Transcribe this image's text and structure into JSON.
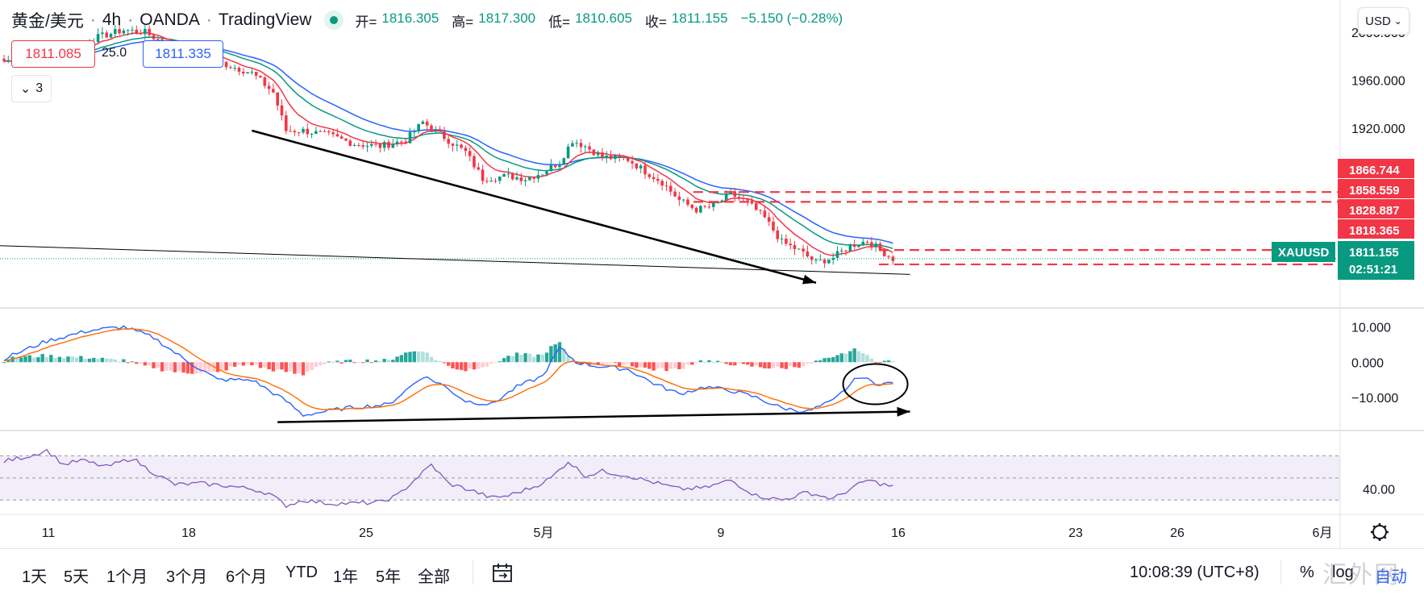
{
  "header": {
    "symbol": "黄金/美元",
    "interval": "4h",
    "broker": "OANDA",
    "platform": "TradingView",
    "ohlc": {
      "open_label": "开=",
      "open": "1816.305",
      "high_label": "高=",
      "high": "1817.300",
      "low_label": "低=",
      "low": "1810.605",
      "close_label": "收=",
      "close": "1811.155",
      "change": "−5.150 (−0.28%)"
    }
  },
  "quote": {
    "bid": "1811.085",
    "spread": "25.0",
    "ask": "1811.335"
  },
  "indicators_toggle": {
    "count": "3"
  },
  "currency_selector": "USD",
  "toolbar": {
    "ranges": [
      "1天",
      "5天",
      "1个月",
      "3个月",
      "6个月",
      "YTD",
      "1年",
      "5年",
      "全部"
    ],
    "clock": "10:08:39 (UTC+8)",
    "percent_label": "%",
    "log_label": "log",
    "auto_label": "自动"
  },
  "watermark": "汇外网",
  "colors": {
    "up": "#089981",
    "down": "#f23645",
    "ma_fast": "#f23645",
    "ma_mid": "#089981",
    "ma_slow": "#2962ff",
    "macd": "#2962ff",
    "signal": "#ff6d00",
    "rsi": "#7e57c2",
    "accent": "#2962ff"
  },
  "chart_data": {
    "type": "candlestick",
    "price_axis": {
      "ticks": [
        2000,
        1960,
        1920
      ],
      "tick_labels": [
        "2000.000",
        "1960.000",
        "1920.000"
      ],
      "range": [
        1770,
        2027
      ]
    },
    "x_axis": {
      "labels": [
        "11",
        "18",
        "25",
        "5月",
        "9",
        "16",
        "23",
        "26",
        "6月"
      ]
    },
    "last_price": "1811.155",
    "countdown": "02:51:21",
    "symbol_tag": "XAUUSD",
    "levels": [
      {
        "label": "1866.744",
        "value": 1866.744,
        "dashed": false
      },
      {
        "label": "1858.559",
        "value": 1858.559,
        "dashed": true
      },
      {
        "label": "1828.887",
        "value": 1828.887,
        "dashed": true
      },
      {
        "label": "1818.365",
        "value": 1818.365,
        "dashed": true
      }
    ],
    "dashed_level_values": [
      1866.744,
      1858.559,
      1828.887,
      1818.365
    ],
    "macd_axis": {
      "tick_labels": [
        "10.000",
        "0.000",
        "−10.000"
      ],
      "ticks": [
        10,
        0,
        -10
      ],
      "range": [
        -18,
        14
      ]
    },
    "rsi_axis": {
      "tick_labels": [
        "40.00"
      ],
      "ticks": [
        40
      ],
      "range": [
        20,
        90
      ],
      "band": [
        30,
        70
      ]
    },
    "close_anchors": [
      [
        0,
        1976
      ],
      [
        8,
        1980
      ],
      [
        15,
        1987
      ],
      [
        22,
        1996
      ],
      [
        28,
        2002
      ],
      [
        33,
        2000
      ],
      [
        38,
        1990
      ],
      [
        43,
        1985
      ],
      [
        48,
        1978
      ],
      [
        53,
        1972
      ],
      [
        58,
        1966
      ],
      [
        63,
        1950
      ],
      [
        66,
        1918
      ],
      [
        70,
        1918
      ],
      [
        76,
        1914
      ],
      [
        82,
        1907
      ],
      [
        88,
        1905
      ],
      [
        94,
        1910
      ],
      [
        98,
        1925
      ],
      [
        102,
        1915
      ],
      [
        108,
        1900
      ],
      [
        112,
        1878
      ],
      [
        118,
        1880
      ],
      [
        122,
        1878
      ],
      [
        126,
        1883
      ],
      [
        130,
        1892
      ],
      [
        133,
        1910
      ],
      [
        136,
        1905
      ],
      [
        140,
        1896
      ],
      [
        146,
        1894
      ],
      [
        150,
        1884
      ],
      [
        154,
        1875
      ],
      [
        158,
        1860
      ],
      [
        162,
        1852
      ],
      [
        166,
        1855
      ],
      [
        170,
        1865
      ],
      [
        174,
        1858
      ],
      [
        178,
        1845
      ],
      [
        182,
        1825
      ],
      [
        186,
        1818
      ],
      [
        190,
        1808
      ],
      [
        194,
        1812
      ],
      [
        198,
        1822
      ],
      [
        202,
        1826
      ],
      [
        206,
        1816
      ],
      [
        208,
        1811
      ]
    ],
    "macd_anchors": [
      [
        0,
        1
      ],
      [
        10,
        6
      ],
      [
        20,
        9
      ],
      [
        28,
        10
      ],
      [
        35,
        7
      ],
      [
        42,
        1
      ],
      [
        50,
        -5
      ],
      [
        58,
        -5
      ],
      [
        66,
        -11
      ],
      [
        70,
        -15
      ],
      [
        80,
        -13
      ],
      [
        90,
        -12
      ],
      [
        98,
        -4
      ],
      [
        102,
        -6
      ],
      [
        108,
        -11
      ],
      [
        114,
        -12
      ],
      [
        120,
        -7
      ],
      [
        126,
        -4
      ],
      [
        130,
        4
      ],
      [
        134,
        0
      ],
      [
        138,
        -1
      ],
      [
        146,
        -2
      ],
      [
        152,
        -6
      ],
      [
        158,
        -9
      ],
      [
        164,
        -7
      ],
      [
        170,
        -8
      ],
      [
        176,
        -10
      ],
      [
        182,
        -13
      ],
      [
        188,
        -14
      ],
      [
        194,
        -11
      ],
      [
        200,
        -4
      ],
      [
        204,
        -6
      ],
      [
        208,
        -6
      ]
    ],
    "rsi_anchors": [
      [
        0,
        65
      ],
      [
        6,
        70
      ],
      [
        10,
        75
      ],
      [
        14,
        62
      ],
      [
        18,
        66
      ],
      [
        24,
        60
      ],
      [
        30,
        68
      ],
      [
        34,
        57
      ],
      [
        40,
        44
      ],
      [
        46,
        45
      ],
      [
        52,
        43
      ],
      [
        58,
        40
      ],
      [
        62,
        36
      ],
      [
        66,
        25
      ],
      [
        70,
        30
      ],
      [
        76,
        27
      ],
      [
        82,
        27
      ],
      [
        88,
        28
      ],
      [
        92,
        34
      ],
      [
        96,
        48
      ],
      [
        100,
        62
      ],
      [
        104,
        45
      ],
      [
        110,
        38
      ],
      [
        114,
        32
      ],
      [
        118,
        34
      ],
      [
        124,
        42
      ],
      [
        128,
        50
      ],
      [
        132,
        65
      ],
      [
        136,
        52
      ],
      [
        140,
        56
      ],
      [
        146,
        52
      ],
      [
        152,
        46
      ],
      [
        158,
        40
      ],
      [
        164,
        41
      ],
      [
        170,
        48
      ],
      [
        176,
        34
      ],
      [
        182,
        30
      ],
      [
        188,
        37
      ],
      [
        194,
        31
      ],
      [
        198,
        40
      ],
      [
        202,
        48
      ],
      [
        206,
        44
      ],
      [
        208,
        42
      ]
    ],
    "trend_lines": [
      {
        "pane": "price",
        "from": [
          58,
          1918
        ],
        "to": [
          190,
          1791
        ],
        "arrow": true
      },
      {
        "pane": "macd",
        "from": [
          64,
          -17
        ],
        "to": [
          212,
          -14
        ],
        "arrow": true
      },
      {
        "pane": "price",
        "from": [
          -10,
          1823
        ],
        "to": [
          212,
          1798
        ],
        "arrow": false
      }
    ],
    "circle_marker": {
      "pane": "macd",
      "center": [
        202,
        -6
      ],
      "note": "ellipse annotation"
    }
  }
}
